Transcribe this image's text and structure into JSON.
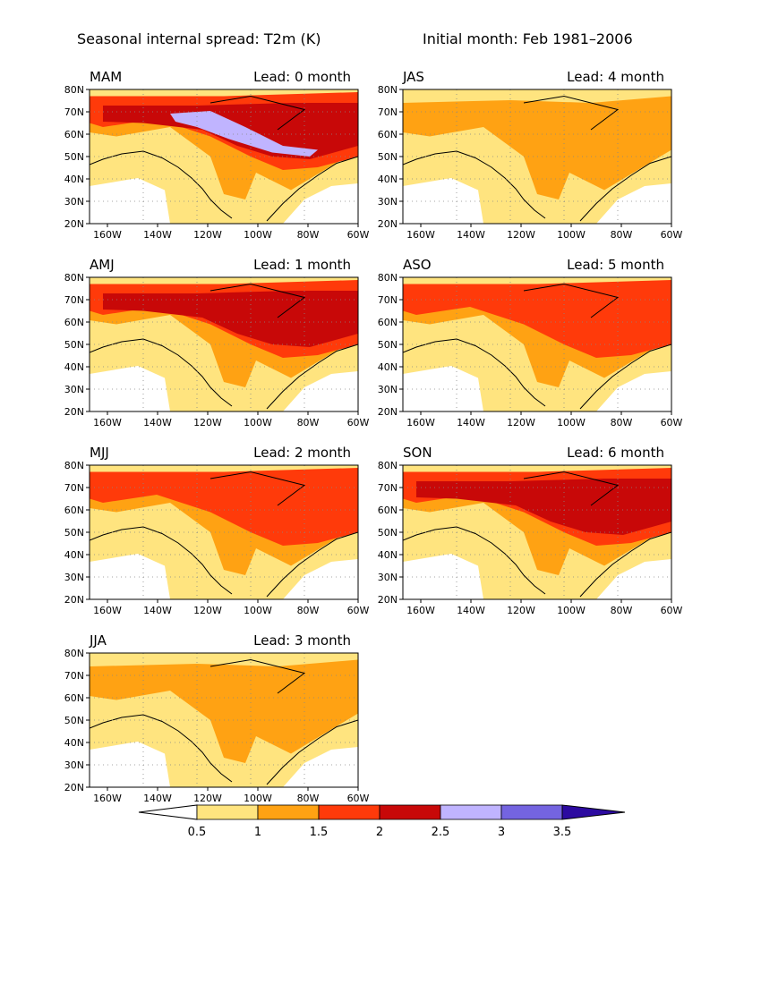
{
  "title": {
    "left": "Seasonal internal spread: T2m (K)",
    "right": "Initial month: Feb 1981–2006"
  },
  "axes": {
    "lat_ticks": [
      "80N",
      "70N",
      "60N",
      "50N",
      "40N",
      "30N",
      "20N"
    ],
    "lon_ticks": [
      "160W",
      "140W",
      "120W",
      "100W",
      "80W",
      "60W"
    ]
  },
  "colorbar": {
    "levels": [
      "0.5",
      "1",
      "1.5",
      "2",
      "2.5",
      "3",
      "3.5"
    ],
    "colors": [
      "#ffffff",
      "#ffe47f",
      "#ffa213",
      "#ff3a0a",
      "#c80808",
      "#c0b4ff",
      "#7464e0",
      "#2c0aa0"
    ]
  },
  "land_color": "#ffffff",
  "panels": [
    {
      "season": "MAM",
      "lead": "Lead: 0 month",
      "level": 5
    },
    {
      "season": "JAS",
      "lead": "Lead: 4 month",
      "level": 2
    },
    {
      "season": "AMJ",
      "lead": "Lead: 1 month",
      "level": 4
    },
    {
      "season": "ASO",
      "lead": "Lead: 5 month",
      "level": 3
    },
    {
      "season": "MJJ",
      "lead": "Lead: 2 month",
      "level": 3
    },
    {
      "season": "SON",
      "lead": "Lead: 6 month",
      "level": 4
    },
    {
      "season": "JJA",
      "lead": "Lead: 3 month",
      "level": 2
    }
  ]
}
